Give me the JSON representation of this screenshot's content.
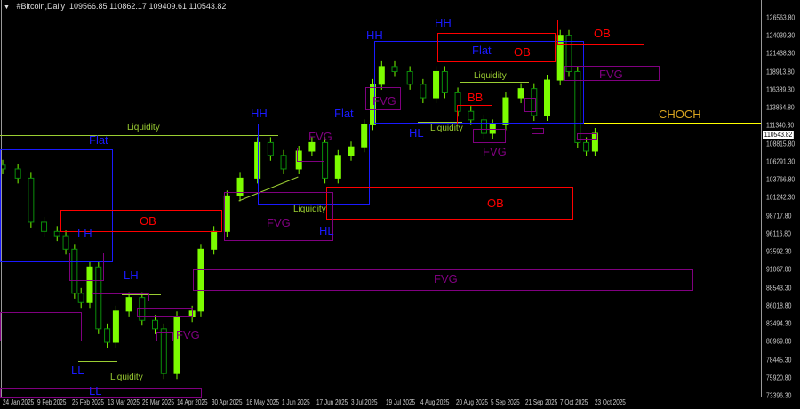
{
  "header": {
    "symbol": "#Bitcoin,Daily",
    "open": "109566.85",
    "high": "110862.17",
    "low": "109409.61",
    "close": "110543.82",
    "menu_icon": "triangle-down-icon"
  },
  "colors": {
    "bull": "#7cfc00",
    "bear": "#0a8f0a",
    "structure": "#1a1aff",
    "order_block": "#ff0000",
    "fvg": "#800080",
    "liquidity": "#9acd32",
    "choch": "#daa520",
    "choch_line": "#ffff00",
    "price_line": "#808080"
  },
  "current_price": "110543.82",
  "price_ticks": [
    "126563.80",
    "124039.30",
    "121438.30",
    "118913.80",
    "116389.30",
    "113864.80",
    "111340.30",
    "108815.80",
    "106291.30",
    "103766.80",
    "101242.30",
    "98717.80",
    "96116.80",
    "93592.30",
    "91067.80",
    "88543.30",
    "86018.80",
    "83494.30",
    "80969.80",
    "78445.30",
    "75920.80",
    "73396.30"
  ],
  "date_ticks": [
    "24 Jan 2025",
    "9 Feb 2025",
    "25 Feb 2025",
    "13 Mar 2025",
    "29 Mar 2025",
    "14 Apr 2025",
    "30 Apr 2025",
    "16 May 2025",
    "1 Jun 2025",
    "17 Jun 2025",
    "3 Jul 2025",
    "19 Jul 2025",
    "4 Aug 2025",
    "20 Aug 2025",
    "5 Sep 2025",
    "21 Sep 2025",
    "7 Oct 2025",
    "23 Oct 2025"
  ],
  "annotations": {
    "flat_1": "Flat",
    "liquidity_1": "Liquidity",
    "ob_1": "OB",
    "lh_1": "LH",
    "lh_2": "LH",
    "ll_1": "LL",
    "ll_2": "LL",
    "liquidity_2": "Liquidity",
    "fvg_1": "FVG",
    "fvg_2": "FVG",
    "hl_1": "HL",
    "liquidity_3": "Liquidity",
    "hh_1": "HH",
    "flat_2": "Flat",
    "fvg_3": "FVG",
    "hh_2": "HH",
    "hh_3": "HH",
    "flat_3": "Flat",
    "ob_2": "OB",
    "ob_3": "OB",
    "fvg_4": "FVG",
    "liquidity_4": "Liquidity",
    "bb_1": "BB",
    "fvg_5": "FVG",
    "hl_2": "HL",
    "liquidity_5": "Liquidity",
    "fvg_6": "FVG",
    "choch": "CHOCH",
    "ob_4": "OB",
    "fvg_7": "FVG"
  },
  "chart_data": {
    "type": "candlestick",
    "title": "#Bitcoin,Daily",
    "ylim": [
      73396.3,
      126563.8
    ],
    "xlim": [
      "2025-01-24",
      "2025-11-08"
    ],
    "grid": false,
    "points": [
      {
        "date": "2025-01-24",
        "close": 105300
      },
      {
        "date": "2025-01-31",
        "close": 104000
      },
      {
        "date": "2025-02-06",
        "close": 97800
      },
      {
        "date": "2025-02-12",
        "close": 96500
      },
      {
        "date": "2025-02-18",
        "close": 95900
      },
      {
        "date": "2025-02-22",
        "close": 94000
      },
      {
        "date": "2025-02-26",
        "close": 87800
      },
      {
        "date": "2025-03-01",
        "close": 86500
      },
      {
        "date": "2025-03-05",
        "close": 91500
      },
      {
        "date": "2025-03-09",
        "close": 82800
      },
      {
        "date": "2025-03-13",
        "close": 80900
      },
      {
        "date": "2025-03-17",
        "close": 85300
      },
      {
        "date": "2025-03-23",
        "close": 87200
      },
      {
        "date": "2025-03-29",
        "close": 84000
      },
      {
        "date": "2025-04-04",
        "close": 82800
      },
      {
        "date": "2025-04-08",
        "close": 76500
      },
      {
        "date": "2025-04-14",
        "close": 84500
      },
      {
        "date": "2025-04-21",
        "close": 85300
      },
      {
        "date": "2025-04-25",
        "close": 94000
      },
      {
        "date": "2025-05-01",
        "close": 96500
      },
      {
        "date": "2025-05-07",
        "close": 101500
      },
      {
        "date": "2025-05-13",
        "close": 104000
      },
      {
        "date": "2025-05-21",
        "close": 109000
      },
      {
        "date": "2025-05-27",
        "close": 107200
      },
      {
        "date": "2025-06-02",
        "close": 105300
      },
      {
        "date": "2025-06-09",
        "close": 107800
      },
      {
        "date": "2025-06-15",
        "close": 109000
      },
      {
        "date": "2025-06-21",
        "close": 104000
      },
      {
        "date": "2025-06-27",
        "close": 107200
      },
      {
        "date": "2025-07-03",
        "close": 108400
      },
      {
        "date": "2025-07-09",
        "close": 111500
      },
      {
        "date": "2025-07-13",
        "close": 117200
      },
      {
        "date": "2025-07-17",
        "close": 119700
      },
      {
        "date": "2025-07-23",
        "close": 119000
      },
      {
        "date": "2025-07-30",
        "close": 117200
      },
      {
        "date": "2025-08-05",
        "close": 115300
      },
      {
        "date": "2025-08-11",
        "close": 119000
      },
      {
        "date": "2025-08-15",
        "close": 116000
      },
      {
        "date": "2025-08-21",
        "close": 113400
      },
      {
        "date": "2025-08-27",
        "close": 112200
      },
      {
        "date": "2025-09-02",
        "close": 110300
      },
      {
        "date": "2025-09-06",
        "close": 111500
      },
      {
        "date": "2025-09-12",
        "close": 115300
      },
      {
        "date": "2025-09-19",
        "close": 116600
      },
      {
        "date": "2025-09-25",
        "close": 112800
      },
      {
        "date": "2025-10-01",
        "close": 117800
      },
      {
        "date": "2025-10-07",
        "close": 124100
      },
      {
        "date": "2025-10-11",
        "close": 119000
      },
      {
        "date": "2025-10-15",
        "close": 109000
      },
      {
        "date": "2025-10-19",
        "close": 107800
      },
      {
        "date": "2025-10-23",
        "close": 110300
      }
    ]
  }
}
